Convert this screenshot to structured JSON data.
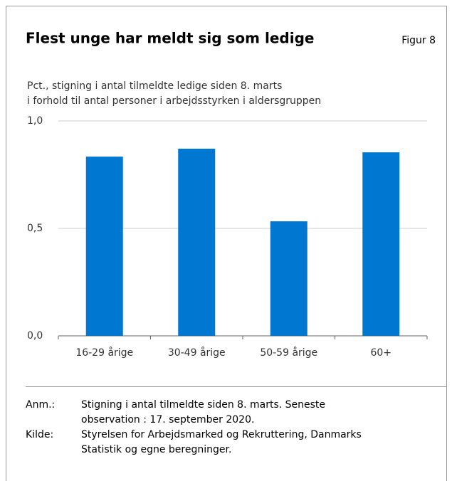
{
  "chart_data": {
    "type": "bar",
    "title": "Flest unge har meldt sig som ledige",
    "figure_label": "Figur 8",
    "subtitle": [
      "Pct., stigning i antal tilmeldte ledige siden 8. marts",
      "i forhold til antal personer i arbejdsstyrken i aldersgruppen"
    ],
    "categories": [
      "16-29 årige",
      "30-49 årige",
      "50-59 årige",
      "60+"
    ],
    "values": [
      0.834,
      0.871,
      0.533,
      0.854
    ],
    "color": "#0078d2",
    "ylim": [
      0,
      1
    ],
    "yticks": [
      {
        "value": 0,
        "label": "0,0"
      },
      {
        "value": 0.5,
        "label": "0,5"
      },
      {
        "value": 1,
        "label": "1,0"
      }
    ],
    "grid": true,
    "notes": [
      {
        "label": "Anm.:",
        "lines": [
          "Stigning i antal tilmeldte siden 8. marts. Seneste",
          "observation : 17. september 2020."
        ]
      },
      {
        "label": "Kilde:",
        "lines": [
          "Styrelsen for Arbejdsmarked og Rekruttering, Danmarks",
          "Statistik og egne beregninger."
        ]
      }
    ]
  }
}
